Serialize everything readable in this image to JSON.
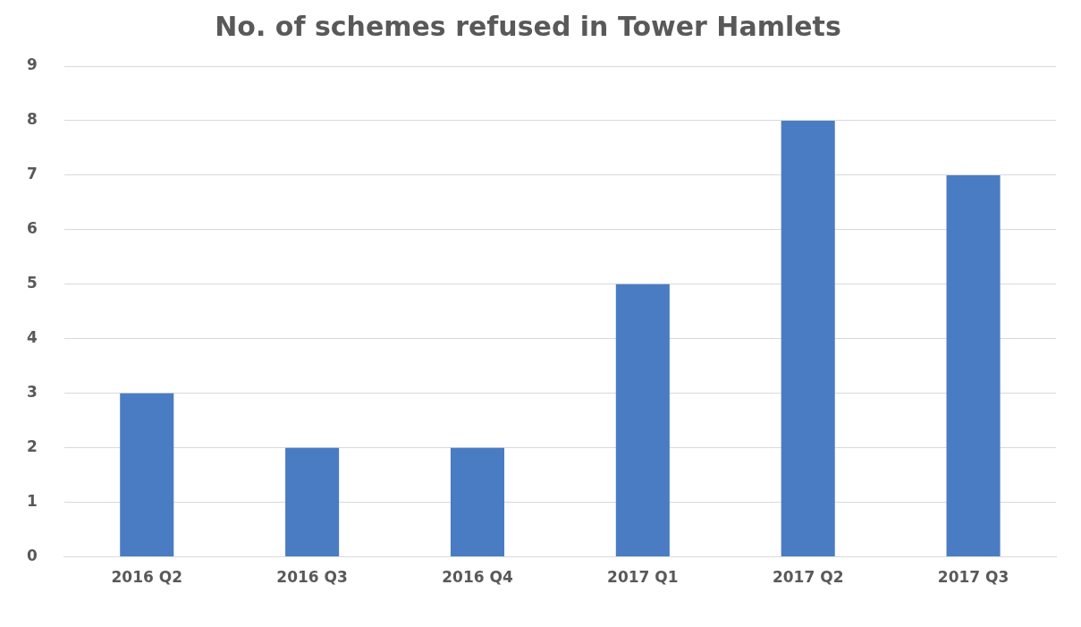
{
  "chart_data": {
    "type": "bar",
    "title": "No. of schemes refused in Tower Hamlets",
    "categories": [
      "2016 Q2",
      "2016 Q3",
      "2016 Q4",
      "2017 Q1",
      "2017 Q2",
      "2017 Q3"
    ],
    "values": [
      3,
      2,
      2,
      5,
      8,
      7
    ],
    "color": "#4a7cc4",
    "ylim": [
      0,
      9
    ],
    "yticks": [
      0,
      1,
      2,
      3,
      4,
      5,
      6,
      7,
      8,
      9
    ],
    "grid": "y",
    "legend": false
  }
}
